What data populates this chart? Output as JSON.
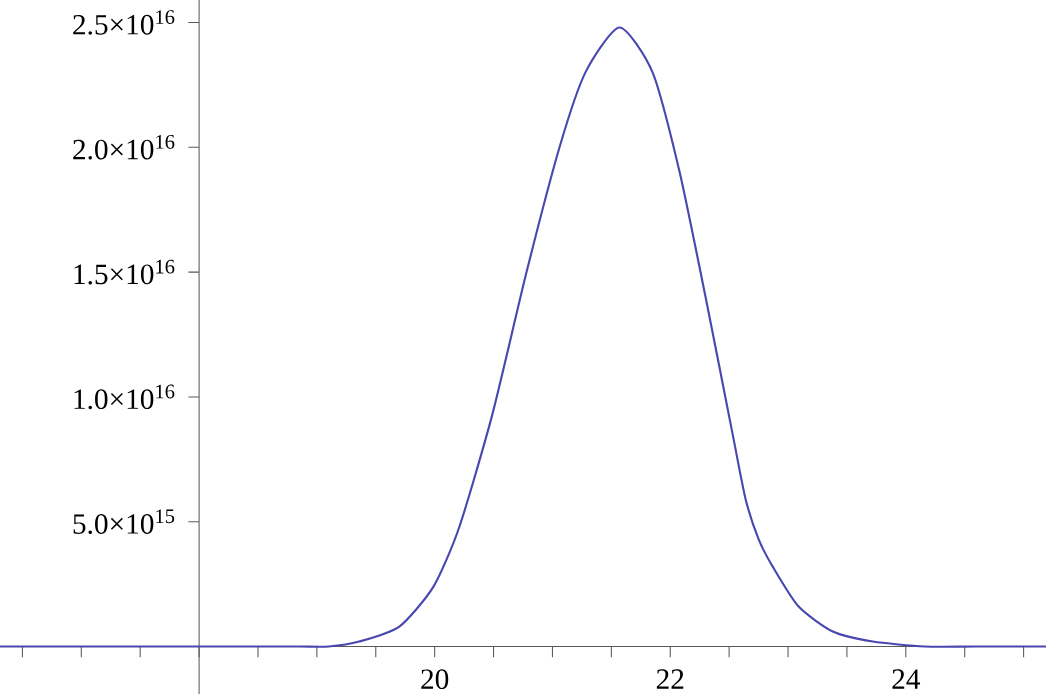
{
  "chart_data": {
    "type": "line",
    "color": "#4848b0",
    "marker": "none",
    "line_style": "solid",
    "grid": false,
    "x": [
      16.31,
      17,
      18,
      18.5,
      18.86,
      19.1,
      19.36,
      19.7,
      19.99,
      20.21,
      20.49,
      20.78,
      21.06,
      21.28,
      21.57,
      21.85,
      22.08,
      22.3,
      22.53,
      22.64,
      22.75,
      22.87,
      23.09,
      23.38,
      23.72,
      24.16,
      24.6,
      25.19
    ],
    "values": [
      0,
      0,
      0,
      0,
      0,
      0,
      200000000000000.0,
      800000000000000.0,
      2400000000000000.0,
      4800000000000000.0,
      9300000000000000.0,
      1.5e+16,
      2e+16,
      2.3e+16,
      2.48e+16,
      2.3e+16,
      1.9e+16,
      1.4e+16,
      8500000000000000.0,
      5900000000000000.0,
      4300000000000000.0,
      3200000000000000.0,
      1600000000000000.0,
      600000000000000.0,
      200000000000000.0,
      0,
      0,
      0
    ],
    "xlim": [
      16.31,
      25.19
    ],
    "ylim": [
      -1900000000000000.0,
      2.59e+16
    ],
    "xticks": [
      {
        "value": 16.5,
        "label": null
      },
      {
        "value": 17,
        "label": null
      },
      {
        "value": 17.5,
        "label": null
      },
      {
        "value": 18,
        "label": null
      },
      {
        "value": 18.5,
        "label": null
      },
      {
        "value": 19,
        "label": null
      },
      {
        "value": 19.5,
        "label": null
      },
      20,
      {
        "value": 20.5,
        "label": null
      },
      {
        "value": 21,
        "label": null
      },
      {
        "value": 21.5,
        "label": null
      },
      22,
      {
        "value": 22.5,
        "label": null
      },
      {
        "value": 23,
        "label": null
      },
      {
        "value": 23.5,
        "label": null
      },
      24,
      {
        "value": 24.5,
        "label": null
      },
      {
        "value": 25,
        "label": null
      }
    ],
    "yticks": [
      {
        "value": 5000000000000000.0,
        "label": "5.0×10$^{15}$"
      },
      {
        "value": 1e+16,
        "label": "1.0×10$^{16}$"
      },
      {
        "value": 1.5e+16,
        "label": "1.5×10$^{16}$"
      },
      {
        "value": 2e+16,
        "label": "2.0×10$^{16}$"
      },
      {
        "value": 2.5e+16,
        "label": "2.5×10$^{16}$"
      }
    ]
  }
}
